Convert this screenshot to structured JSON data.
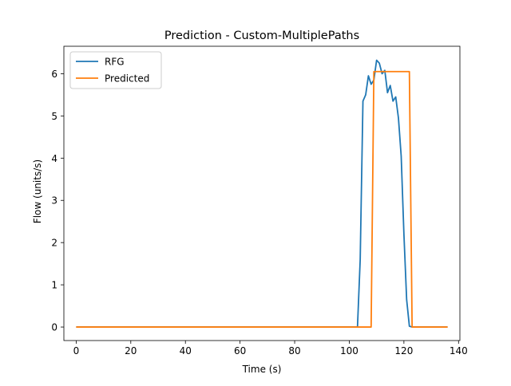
{
  "chart_data": {
    "type": "line",
    "title": "Prediction - Custom-MultiplePaths",
    "xlabel": "Time (s)",
    "ylabel": "Flow (units/s)",
    "xlim": [
      -4.5,
      140.5
    ],
    "ylim": [
      -0.32,
      6.65
    ],
    "xticks": [
      0,
      20,
      40,
      60,
      80,
      100,
      120,
      140
    ],
    "yticks": [
      0,
      1,
      2,
      3,
      4,
      5,
      6
    ],
    "grid": false,
    "legend": {
      "position": "top-left"
    },
    "series": [
      {
        "name": "RFG",
        "color": "#1f77b4",
        "x": [
          0,
          103,
          104,
          105,
          106,
          107,
          108,
          109,
          110,
          111,
          112,
          113,
          114,
          115,
          116,
          117,
          118,
          119,
          120,
          121,
          122,
          123,
          124,
          136
        ],
        "y": [
          0,
          0,
          1.6,
          5.35,
          5.5,
          5.95,
          5.75,
          5.85,
          6.32,
          6.25,
          6.0,
          6.08,
          5.55,
          5.72,
          5.35,
          5.45,
          4.95,
          4.05,
          2.2,
          0.65,
          0.02,
          0,
          0,
          0
        ]
      },
      {
        "name": "Predicted",
        "color": "#ff7f0e",
        "x": [
          0,
          108,
          109,
          122,
          123,
          136
        ],
        "y": [
          0,
          0,
          6.05,
          6.05,
          0,
          0
        ]
      }
    ]
  }
}
